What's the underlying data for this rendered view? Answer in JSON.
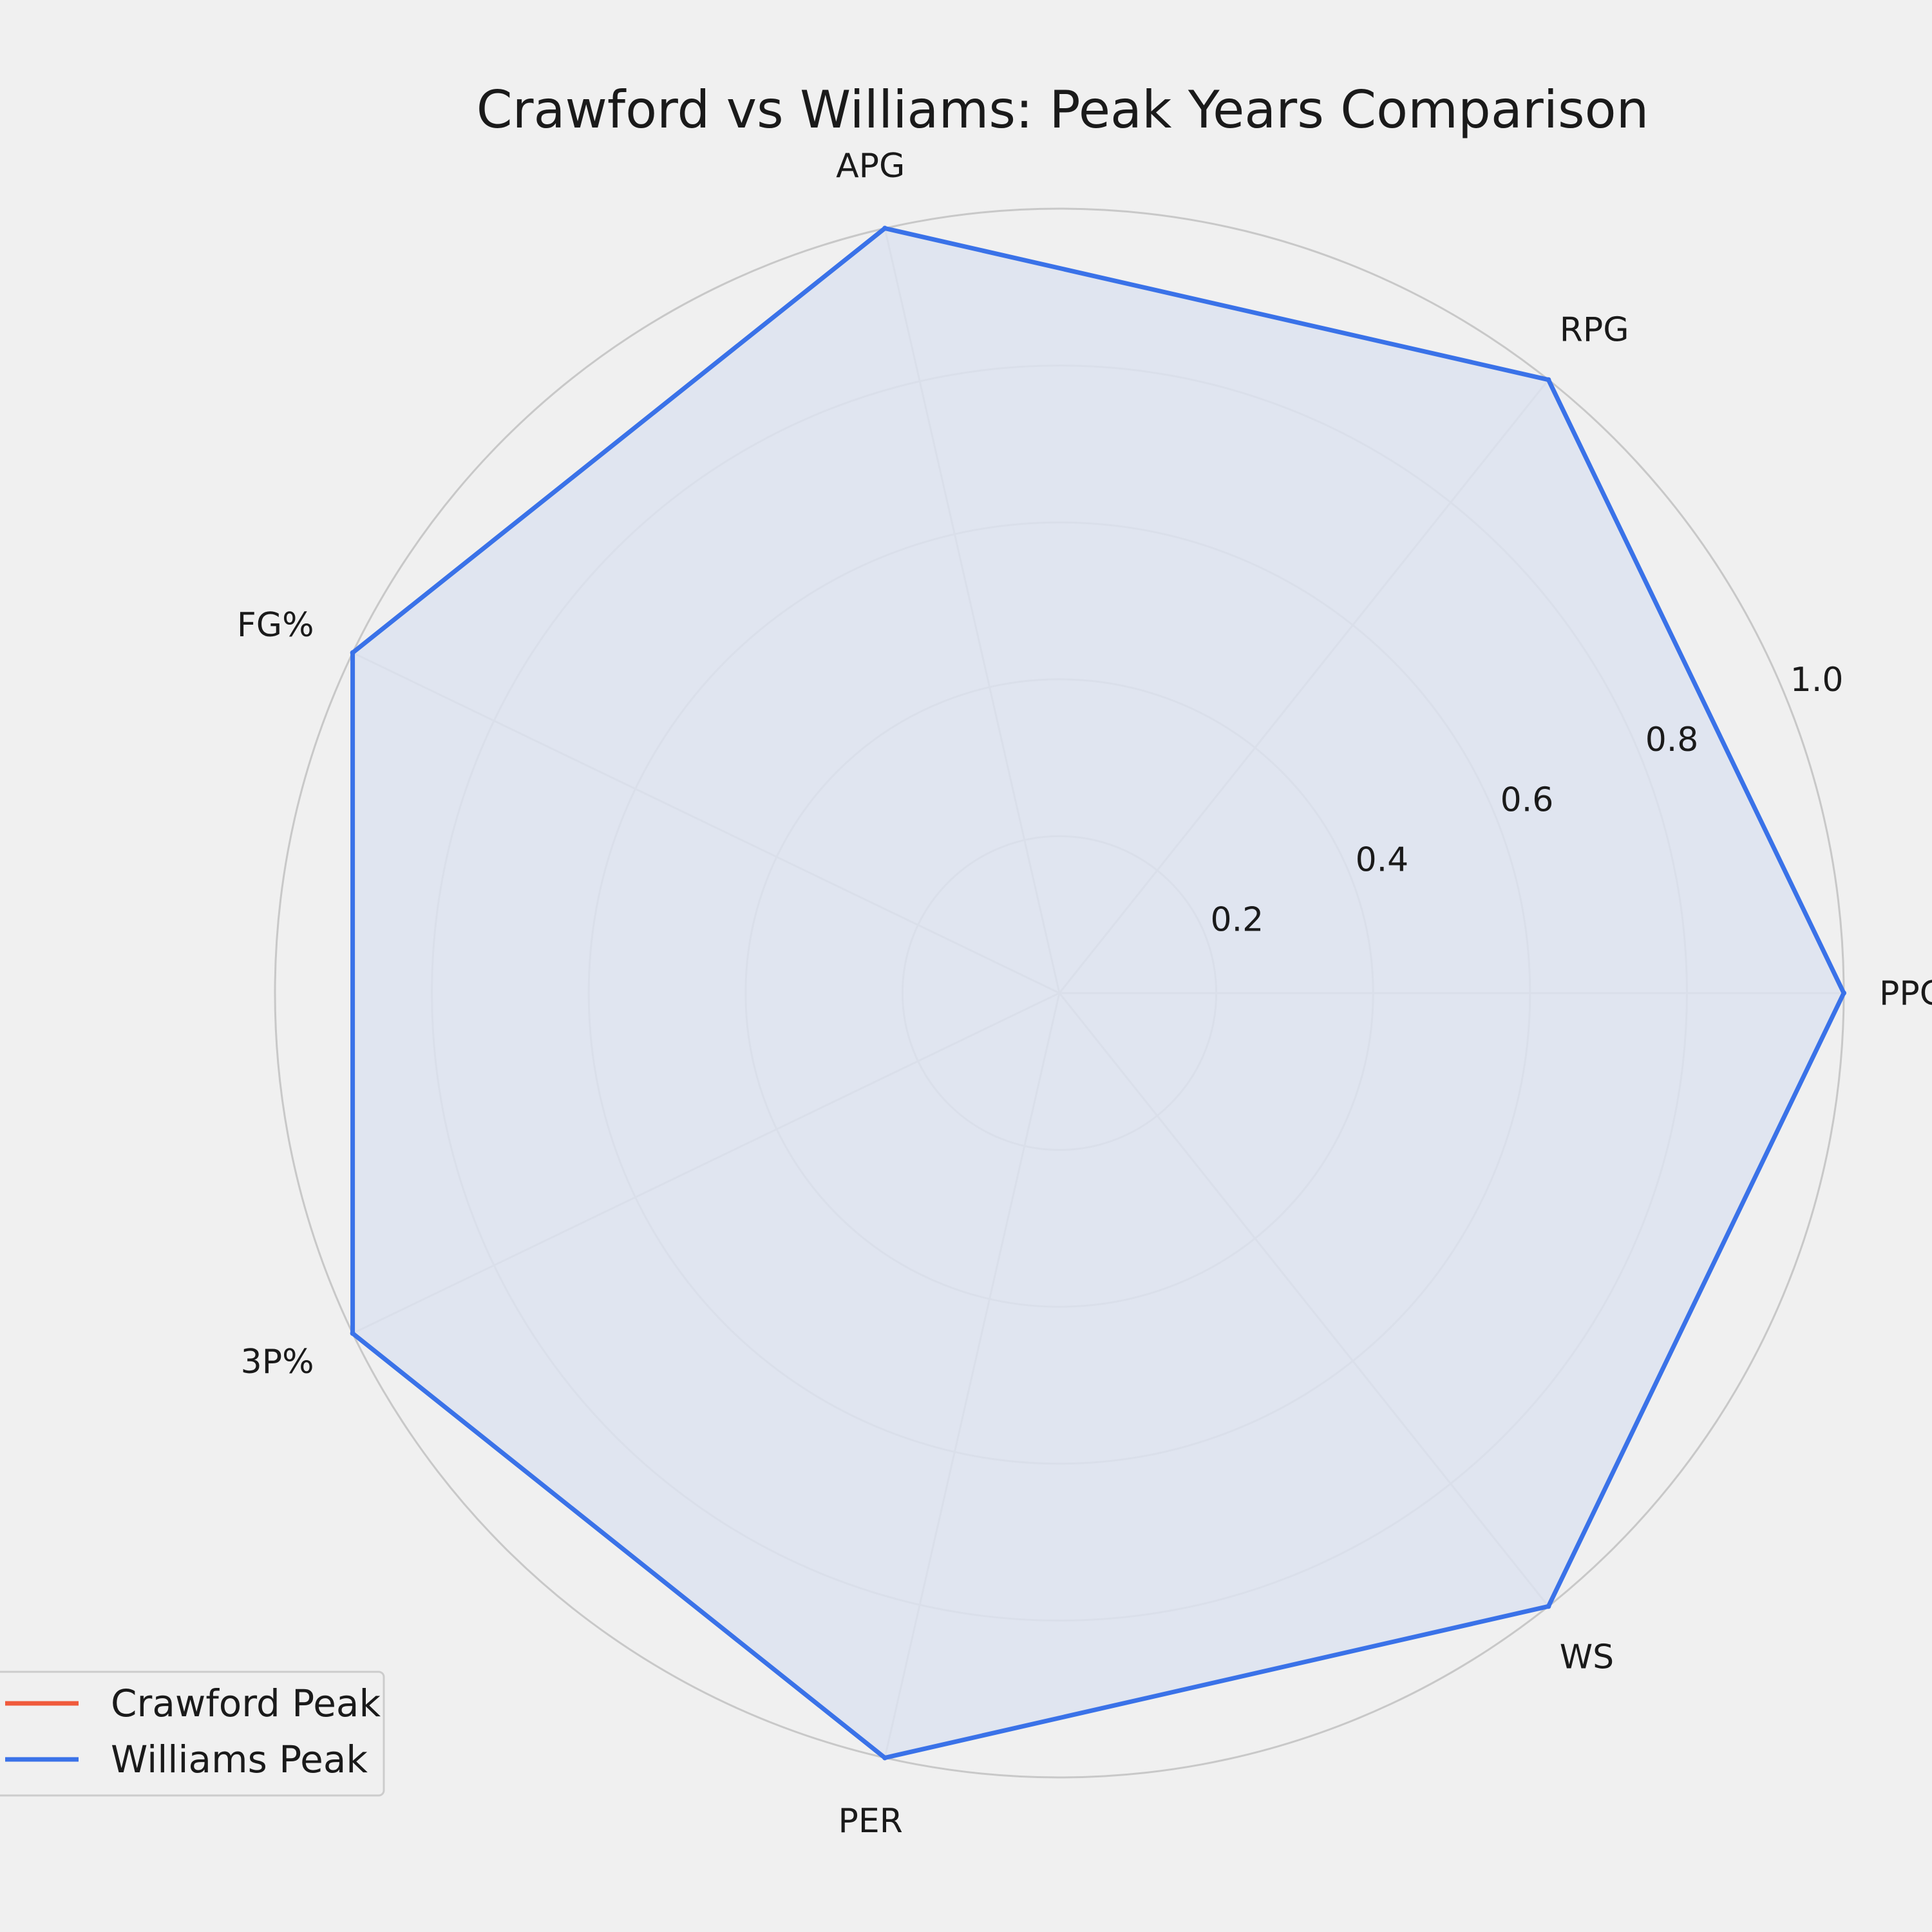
{
  "chart_data": {
    "type": "radar",
    "title": "Crawford vs Williams: Peak Years Comparison",
    "categories": [
      "PPG",
      "RPG",
      "APG",
      "FG%",
      "3P%",
      "PER",
      "WS"
    ],
    "series": [
      {
        "name": "Crawford Peak",
        "color": "#f05a3c",
        "values": [
          null,
          null,
          null,
          null,
          null,
          null,
          null
        ]
      },
      {
        "name": "Williams Peak",
        "color": "#3a72e8",
        "values": [
          1.0,
          1.0,
          1.0,
          1.0,
          1.0,
          1.0,
          1.0
        ]
      }
    ],
    "radial_ticks": [
      "0.2",
      "0.4",
      "0.6",
      "0.8",
      "1.0"
    ],
    "rlim": [
      0,
      1.0
    ],
    "grid": true,
    "legend_position": "bottom-left"
  },
  "colors": {
    "background": "#f0f0f0",
    "grid": "#c8c8c8",
    "fill": "#dde3f0"
  }
}
